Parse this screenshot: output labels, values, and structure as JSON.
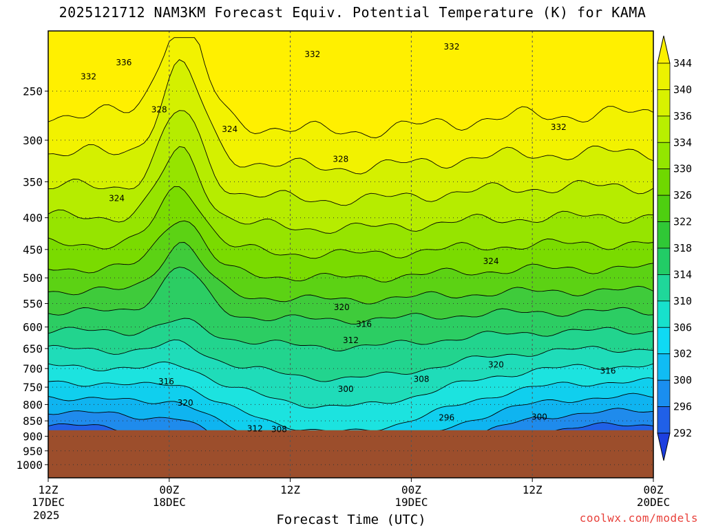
{
  "title": "2025121712 NAM3KM Forecast Equiv. Potential Temperature (K) for KAMA",
  "xlabel": "Forecast Time (UTC)",
  "year_label": "2025",
  "credit": "coolwx.com/models",
  "chart_data": {
    "type": "contour",
    "title": "2025121712 NAM3KM Forecast Equiv. Potential Temperature (K) for KAMA",
    "xlabel": "Forecast Time (UTC)",
    "x_ticks": [
      {
        "hour": 0,
        "line1": "12Z",
        "line2": "17DEC"
      },
      {
        "hour": 12,
        "line1": "00Z",
        "line2": "18DEC"
      },
      {
        "hour": 24,
        "line1": "12Z",
        "line2": ""
      },
      {
        "hour": 36,
        "line1": "00Z",
        "line2": "19DEC"
      },
      {
        "hour": 48,
        "line1": "12Z",
        "line2": ""
      },
      {
        "hour": 60,
        "line1": "00Z",
        "line2": "20DEC"
      }
    ],
    "xlim_hours": [
      0,
      60
    ],
    "y_ticks": [
      250,
      300,
      350,
      400,
      450,
      500,
      550,
      600,
      650,
      700,
      750,
      800,
      850,
      900,
      950,
      1000
    ],
    "ylim_hpa": [
      200,
      1050
    ],
    "y_scale": "log",
    "ground_level_hpa": 880,
    "colorbar": {
      "labels": [
        344,
        340,
        336,
        334,
        330,
        326,
        322,
        318,
        314,
        310,
        306,
        302,
        300,
        296,
        292
      ],
      "colors": [
        "#fbf000",
        "#ecf200",
        "#d8f200",
        "#b8ef00",
        "#93e600",
        "#6fd800",
        "#4ecf10",
        "#30c836",
        "#22cc66",
        "#1fd79a",
        "#17e1cc",
        "#0fdaf4",
        "#10bcf4",
        "#1a8ef0",
        "#2060e8",
        "#1d3fe0"
      ]
    },
    "fill_colors": [
      "#fff000",
      "#f2f200",
      "#d4f000",
      "#b6ec00",
      "#96e400",
      "#7adb00",
      "#5cd214",
      "#3fcb3b",
      "#2ccd63",
      "#22d48e",
      "#1fdcb9",
      "#1ce3df",
      "#10cfee",
      "#0fb4f0",
      "#1f8bec",
      "#2161e6",
      "#1d45dd"
    ],
    "contour_labels": [
      {
        "text": "336",
        "h": 7.5,
        "p": 225
      },
      {
        "text": "332",
        "h": 4.0,
        "p": 237
      },
      {
        "text": "332",
        "h": 26.2,
        "p": 218
      },
      {
        "text": "332",
        "h": 40.0,
        "p": 212
      },
      {
        "text": "332",
        "h": 50.6,
        "p": 286
      },
      {
        "text": "328",
        "h": 11.0,
        "p": 268
      },
      {
        "text": "328",
        "h": 29.0,
        "p": 322
      },
      {
        "text": "324",
        "h": 18.0,
        "p": 288
      },
      {
        "text": "324",
        "h": 6.8,
        "p": 372
      },
      {
        "text": "324",
        "h": 43.9,
        "p": 470
      },
      {
        "text": "320",
        "h": 29.1,
        "p": 558
      },
      {
        "text": "316",
        "h": 31.3,
        "p": 594
      },
      {
        "text": "312",
        "h": 30.0,
        "p": 630
      },
      {
        "text": "320",
        "h": 44.4,
        "p": 690
      },
      {
        "text": "316",
        "h": 55.5,
        "p": 706
      },
      {
        "text": "316",
        "h": 11.7,
        "p": 735
      },
      {
        "text": "320",
        "h": 13.6,
        "p": 795
      },
      {
        "text": "308",
        "h": 37.0,
        "p": 728
      },
      {
        "text": "300",
        "h": 29.5,
        "p": 756
      },
      {
        "text": "296",
        "h": 39.5,
        "p": 840
      },
      {
        "text": "300",
        "h": 48.7,
        "p": 838
      },
      {
        "text": "312",
        "h": 20.5,
        "p": 875
      },
      {
        "text": "308",
        "h": 22.9,
        "p": 877
      }
    ]
  }
}
